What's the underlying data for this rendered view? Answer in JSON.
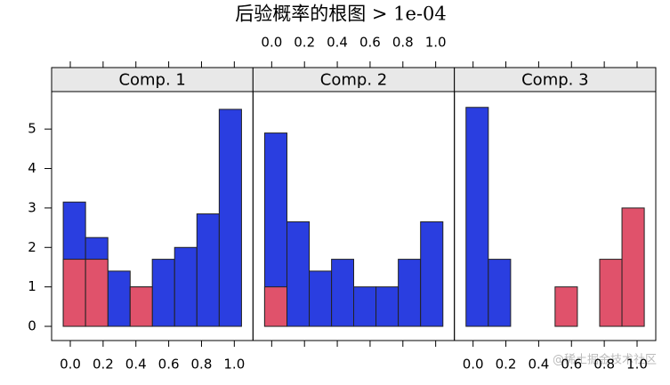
{
  "chart_data": {
    "type": "histogram",
    "title": "后验概率的根图 > 1e-04",
    "bins": [
      -0.043,
      0.093,
      0.229,
      0.365,
      0.5,
      0.636,
      0.772,
      0.908,
      1.044
    ],
    "xlim": [
      -0.114,
      1.114
    ],
    "xticks": [
      {
        "value": 0,
        "label": "0.0"
      },
      {
        "value": 0.2,
        "label": "0.2"
      },
      {
        "value": 0.4,
        "label": "0.4"
      },
      {
        "value": 0.6,
        "label": "0.6"
      },
      {
        "value": 0.8,
        "label": "0.8"
      },
      {
        "value": 1,
        "label": "1.0"
      }
    ],
    "ylim": [
      -0.36,
      5.95
    ],
    "yticks": [
      0,
      1,
      2,
      3,
      4,
      5
    ],
    "panels": [
      {
        "strip": "Comp. 1",
        "series": [
          {
            "color": "#2a3ee0",
            "values": [
              3.15,
              2.25,
              1.4,
              1.0,
              1.7,
              2.0,
              2.85,
              5.5
            ]
          },
          {
            "color": "#e0526b",
            "values": [
              1.7,
              1.7,
              0,
              1.0,
              0,
              0,
              0,
              0
            ]
          }
        ]
      },
      {
        "strip": "Comp. 2",
        "series": [
          {
            "color": "#2a3ee0",
            "values": [
              4.9,
              2.65,
              1.4,
              1.7,
              1.0,
              1.0,
              1.7,
              2.65
            ]
          },
          {
            "color": "#e0526b",
            "values": [
              1.0,
              0,
              0,
              0,
              0,
              0,
              0,
              0
            ]
          }
        ]
      },
      {
        "strip": "Comp. 3",
        "series": [
          {
            "color": "#2a3ee0",
            "values": [
              5.55,
              1.7,
              0,
              0,
              0,
              0,
              0,
              0
            ]
          },
          {
            "color": "#e0526b",
            "values": [
              0,
              0,
              0,
              0,
              1.0,
              0,
              1.7,
              3.0
            ]
          }
        ]
      }
    ]
  },
  "watermark": "@稀土掘金技术社区"
}
